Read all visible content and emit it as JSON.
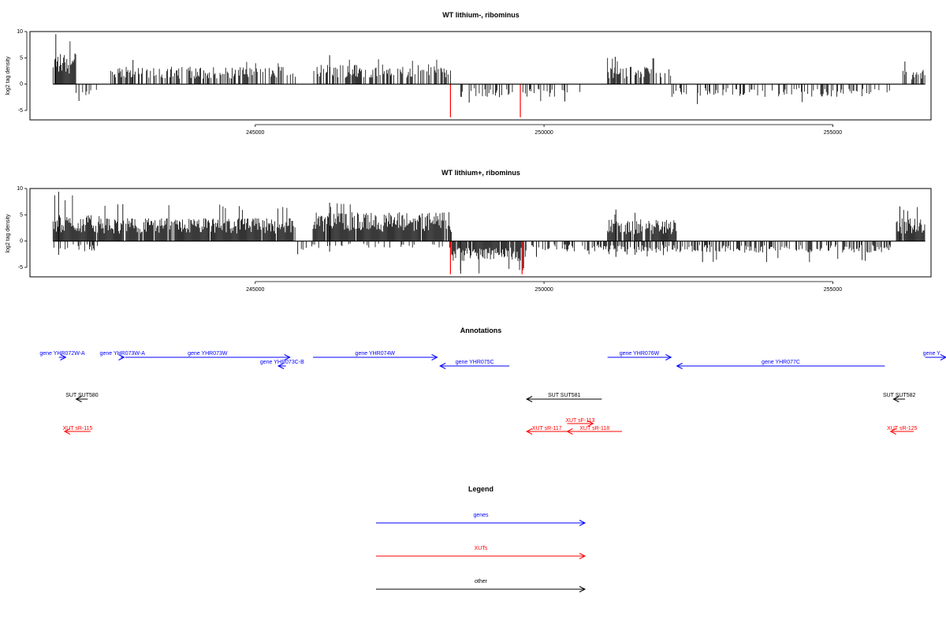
{
  "colors": {
    "genes": "#0000ff",
    "xuts": "#ff0000",
    "other": "#000000",
    "highlight": "#ff0000"
  },
  "chart_data": [
    {
      "type": "bar",
      "title": "WT lithium-, ribominus",
      "ylabel": "log2 tag density",
      "xlim": [
        241100,
        256700
      ],
      "ylim": [
        -6.8,
        10
      ],
      "x_ticks": [
        "245000",
        "250000",
        "255000"
      ],
      "y_ticks": [
        "10",
        "5",
        "0",
        "-5"
      ],
      "x_tick_values": [
        245000,
        250000,
        255000
      ],
      "y_tick_values": [
        10,
        5,
        0,
        -5
      ],
      "segments": [
        {
          "start": 241500,
          "end": 241900,
          "sign": 1,
          "amp": 5.5,
          "density": 0.9,
          "max": 9.5
        },
        {
          "start": 241900,
          "end": 242300,
          "sign": -1,
          "amp": 2.0,
          "density": 0.25,
          "max": 3.2
        },
        {
          "start": 242500,
          "end": 245700,
          "sign": 1,
          "amp": 3.0,
          "density": 0.6,
          "max": 4.6
        },
        {
          "start": 246000,
          "end": 248400,
          "sign": 1,
          "amp": 3.5,
          "density": 0.6,
          "max": 5.5
        },
        {
          "start": 248500,
          "end": 250200,
          "sign": -1,
          "amp": 2.3,
          "density": 0.3,
          "max": 3.5
        },
        {
          "start": 250300,
          "end": 250800,
          "sign": -1,
          "amp": 1.5,
          "density": 0.15,
          "max": 3.3
        },
        {
          "start": 251100,
          "end": 252200,
          "sign": 1,
          "amp": 3.0,
          "density": 0.55,
          "max": 5.2
        },
        {
          "start": 252200,
          "end": 256000,
          "sign": -1,
          "amp": 2.2,
          "density": 0.3,
          "max": 3.8
        },
        {
          "start": 256200,
          "end": 256600,
          "sign": 1,
          "amp": 2.5,
          "density": 0.5,
          "max": 4.3
        }
      ],
      "highlights": [
        {
          "x": 248380,
          "y": -6.3
        },
        {
          "x": 249590,
          "y": -6.3
        }
      ]
    },
    {
      "type": "bar",
      "title": "WT lithium+, ribominus",
      "ylabel": "log2 tag density",
      "xlim": [
        241100,
        256700
      ],
      "ylim": [
        -6.8,
        10
      ],
      "x_ticks": [
        "245000",
        "250000",
        "255000"
      ],
      "y_ticks": [
        "10",
        "5",
        "0",
        "-5"
      ],
      "x_tick_values": [
        245000,
        250000,
        255000
      ],
      "y_tick_values": [
        10,
        5,
        0,
        -5
      ],
      "segments": [
        {
          "start": 241500,
          "end": 242300,
          "sign": 1,
          "amp": 4.5,
          "density": 0.95,
          "max": 9.4
        },
        {
          "start": 241500,
          "end": 242300,
          "sign": -1,
          "amp": 1.8,
          "density": 0.35,
          "max": 2.6
        },
        {
          "start": 242300,
          "end": 245700,
          "sign": 1,
          "amp": 4.0,
          "density": 0.95,
          "max": 7.0
        },
        {
          "start": 245700,
          "end": 246000,
          "sign": -1,
          "amp": 1.5,
          "density": 0.3,
          "max": 2.5
        },
        {
          "start": 246000,
          "end": 248400,
          "sign": 1,
          "amp": 5.0,
          "density": 0.95,
          "max": 7.3
        },
        {
          "start": 246000,
          "end": 248400,
          "sign": -1,
          "amp": 1.2,
          "density": 0.2,
          "max": 2.0
        },
        {
          "start": 248400,
          "end": 249700,
          "sign": -1,
          "amp": 3.5,
          "density": 0.95,
          "max": 6.2
        },
        {
          "start": 249700,
          "end": 251100,
          "sign": -1,
          "amp": 1.8,
          "density": 0.45,
          "max": 3.0
        },
        {
          "start": 251100,
          "end": 252300,
          "sign": 1,
          "amp": 3.8,
          "density": 0.9,
          "max": 6.0
        },
        {
          "start": 251100,
          "end": 252300,
          "sign": -1,
          "amp": 2.0,
          "density": 0.6,
          "max": 3.0
        },
        {
          "start": 252300,
          "end": 256000,
          "sign": -1,
          "amp": 2.0,
          "density": 0.5,
          "max": 4.0
        },
        {
          "start": 256100,
          "end": 256600,
          "sign": 1,
          "amp": 4.0,
          "density": 0.9,
          "max": 6.6
        }
      ],
      "highlights": [
        {
          "x": 248380,
          "y": -6.3
        },
        {
          "x": 249620,
          "y": -6.3
        }
      ]
    }
  ],
  "annotations": {
    "title": "Annotations",
    "items": [
      {
        "label": "gene YHR072W-A",
        "type": "genes",
        "dir": "right",
        "start": 241600,
        "end": 241720
      },
      {
        "label": "gene YHR073W-A",
        "type": "genes",
        "dir": "right",
        "start": 242670,
        "end": 242730
      },
      {
        "label": "gene YHR073W",
        "type": "genes",
        "dir": "right",
        "start": 242750,
        "end": 245600
      },
      {
        "label": "gene YHR073C-B",
        "type": "genes",
        "dir": "left",
        "start": 245400,
        "end": 245530
      },
      {
        "label": "gene YHR074W",
        "type": "genes",
        "dir": "right",
        "start": 246000,
        "end": 248150
      },
      {
        "label": "gene YHR075C",
        "type": "genes",
        "dir": "left",
        "start": 248200,
        "end": 249400
      },
      {
        "label": "gene YHR076W",
        "type": "genes",
        "dir": "right",
        "start": 251100,
        "end": 252200
      },
      {
        "label": "gene YHR077C",
        "type": "genes",
        "dir": "left",
        "start": 252300,
        "end": 255900
      },
      {
        "label": "gene Y",
        "type": "genes",
        "dir": "right",
        "start": 256600,
        "end": 257000
      },
      {
        "label": "SUT SUT580",
        "type": "other",
        "dir": "left",
        "start": 241900,
        "end": 242100
      },
      {
        "label": "SUT SUT581",
        "type": "other",
        "dir": "left",
        "start": 249700,
        "end": 251000
      },
      {
        "label": "SUT SUT582",
        "type": "other",
        "dir": "left",
        "start": 256050,
        "end": 256250
      },
      {
        "label": "XUT sR-115",
        "type": "xuts",
        "dir": "left",
        "start": 241700,
        "end": 242150
      },
      {
        "label": "XUT sF-113",
        "type": "xuts",
        "dir": "right",
        "start": 250400,
        "end": 250850
      },
      {
        "label": "XUT sR-117",
        "type": "xuts",
        "dir": "left",
        "start": 249700,
        "end": 250400
      },
      {
        "label": "XUT sR-118",
        "type": "xuts",
        "dir": "left",
        "start": 250400,
        "end": 251350
      },
      {
        "label": "XUT sR-125",
        "type": "xuts",
        "dir": "left",
        "start": 256000,
        "end": 256400
      }
    ]
  },
  "legend": {
    "title": "Legend",
    "entries": [
      {
        "label": "genes",
        "type": "genes"
      },
      {
        "label": "XUTs",
        "type": "xuts"
      },
      {
        "label": "other",
        "type": "other"
      }
    ]
  }
}
